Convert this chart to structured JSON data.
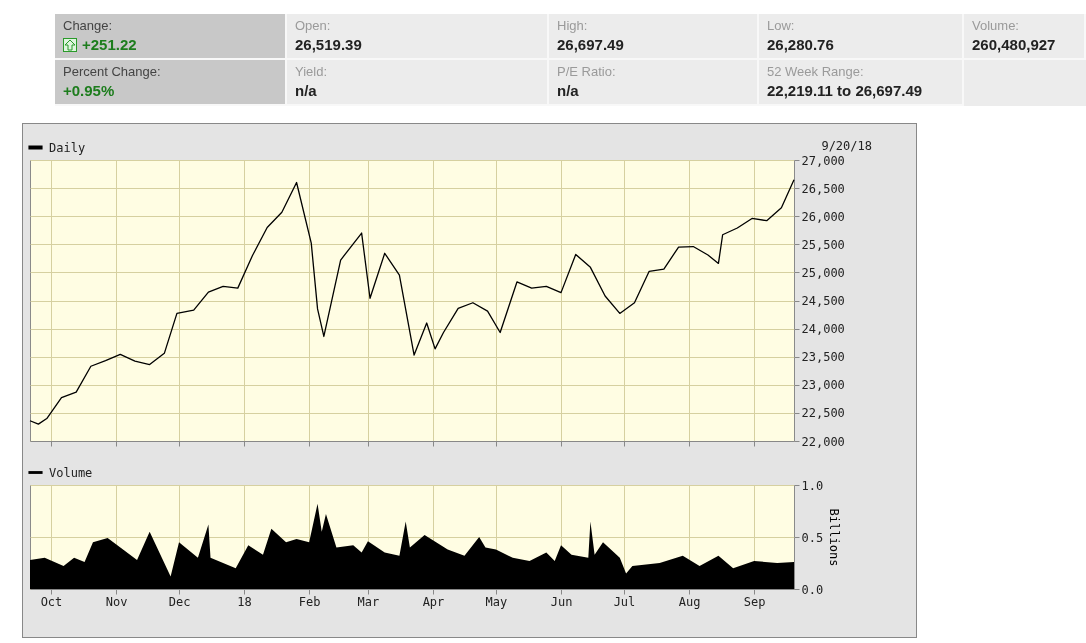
{
  "chart_data": [
    {
      "type": "other",
      "annotations": [
        "Change:",
        "+251.22",
        "Open:",
        "26,519.39",
        "High:",
        "26,697.49",
        "Low:",
        "26,280.76",
        "Volume:",
        "260,480,927",
        "Percent Change:",
        "+0.95%",
        "Yield:",
        "n/a",
        "P/E Ratio:",
        "n/a",
        "52 Week Range:",
        "22,219.11 to 26,697.49"
      ]
    },
    {
      "type": "line",
      "annotations": [
        "9/20/18"
      ],
      "xticks": [
        {
          "value": "2017-10-01",
          "label": null
        },
        {
          "value": "2017-11-01",
          "label": null
        },
        {
          "value": "2017-12-01",
          "label": null
        },
        {
          "value": "2018-01-01",
          "label": null
        },
        {
          "value": "2018-02-01",
          "label": null
        },
        {
          "value": "2018-03-01",
          "label": null
        },
        {
          "value": "2018-04-01",
          "label": null
        },
        {
          "value": "2018-05-01",
          "label": null
        },
        {
          "value": "2018-06-01",
          "label": null
        },
        {
          "value": "2018-07-01",
          "label": null
        },
        {
          "value": "2018-08-01",
          "label": null
        },
        {
          "value": "2018-09-01",
          "label": null
        }
      ],
      "x": [
        "2017-09-21",
        "2017-09-25",
        "2017-09-29",
        "2017-10-06",
        "2017-10-13",
        "2017-10-20",
        "2017-10-27",
        "2017-11-03",
        "2017-11-10",
        "2017-11-17",
        "2017-11-24",
        "2017-11-30",
        "2017-12-08",
        "2017-12-15",
        "2017-12-22",
        "2017-12-29",
        "2018-01-05",
        "2018-01-12",
        "2018-01-19",
        "2018-01-26",
        "2018-02-02",
        "2018-02-05",
        "2018-02-08",
        "2018-02-16",
        "2018-02-26",
        "2018-03-02",
        "2018-03-09",
        "2018-03-16",
        "2018-03-23",
        "2018-03-29",
        "2018-04-02",
        "2018-04-06",
        "2018-04-13",
        "2018-04-20",
        "2018-04-27",
        "2018-05-03",
        "2018-05-11",
        "2018-05-18",
        "2018-05-25",
        "2018-06-01",
        "2018-06-08",
        "2018-06-15",
        "2018-06-22",
        "2018-06-29",
        "2018-07-06",
        "2018-07-13",
        "2018-07-20",
        "2018-07-27",
        "2018-08-03",
        "2018-08-10",
        "2018-08-15",
        "2018-08-17",
        "2018-08-24",
        "2018-08-31",
        "2018-09-07",
        "2018-09-14",
        "2018-09-20"
      ],
      "series": [
        {
          "name": "Daily",
          "color": "#000000",
          "values": [
            22360,
            22300,
            22400,
            22770,
            22870,
            23330,
            23430,
            23540,
            23420,
            23360,
            23560,
            24270,
            24330,
            24650,
            24750,
            24720,
            25300,
            25800,
            26070,
            26600,
            25520,
            24350,
            23860,
            25220,
            25700,
            24540,
            25340,
            24950,
            23530,
            24100,
            23640,
            23930,
            24360,
            24460,
            24310,
            23930,
            24830,
            24720,
            24750,
            24640,
            25320,
            25090,
            24580,
            24270,
            24460,
            25020,
            25060,
            25450,
            25460,
            25310,
            25160,
            25670,
            25790,
            25960,
            25920,
            26150,
            26650
          ]
        }
      ],
      "xlim": [
        "2017-09-21",
        "2018-09-20"
      ],
      "ylim": [
        22000,
        27000
      ],
      "yticks": [
        {
          "value": 22000,
          "label": "22,000"
        },
        {
          "value": 22500,
          "label": "22,500"
        },
        {
          "value": 23000,
          "label": "23,000"
        },
        {
          "value": 23500,
          "label": "23,500"
        },
        {
          "value": 24000,
          "label": "24,000"
        },
        {
          "value": 24500,
          "label": "24,500"
        },
        {
          "value": 25000,
          "label": "25,000"
        },
        {
          "value": 25500,
          "label": "25,500"
        },
        {
          "value": 26000,
          "label": "26,000"
        },
        {
          "value": 26500,
          "label": "26,500"
        },
        {
          "value": 27000,
          "label": "27,000"
        }
      ],
      "tick_labels": "y",
      "grid": true,
      "legend": "top left",
      "line_style": "solid"
    },
    {
      "type": "area",
      "ylabel": "Billions",
      "x": [
        "2017-09-21",
        "2017-09-28",
        "2017-10-07",
        "2017-10-12",
        "2017-10-17",
        "2017-10-21",
        "2017-10-28",
        "2017-11-11",
        "2017-11-17",
        "2017-11-27",
        "2017-12-01",
        "2017-12-10",
        "2017-12-15",
        "2017-12-16",
        "2017-12-28",
        "2018-01-03",
        "2018-01-10",
        "2018-01-14",
        "2018-01-21",
        "2018-01-26",
        "2018-02-01",
        "2018-02-05",
        "2018-02-07",
        "2018-02-09",
        "2018-02-14",
        "2018-02-22",
        "2018-02-26",
        "2018-03-01",
        "2018-03-09",
        "2018-03-16",
        "2018-03-19",
        "2018-03-21",
        "2018-03-28",
        "2018-04-08",
        "2018-04-16",
        "2018-04-23",
        "2018-04-26",
        "2018-05-01",
        "2018-05-09",
        "2018-05-17",
        "2018-05-25",
        "2018-05-29",
        "2018-06-01",
        "2018-06-06",
        "2018-06-14",
        "2018-06-15",
        "2018-06-17",
        "2018-06-21",
        "2018-06-29",
        "2018-07-02",
        "2018-07-05",
        "2018-07-18",
        "2018-07-29",
        "2018-08-06",
        "2018-08-15",
        "2018-08-22",
        "2018-09-01",
        "2018-09-12",
        "2018-09-20"
      ],
      "series": [
        {
          "name": "Volume",
          "color": "#000000",
          "values": [
            0.28,
            0.3,
            0.22,
            0.3,
            0.26,
            0.45,
            0.49,
            0.28,
            0.55,
            0.12,
            0.45,
            0.3,
            0.62,
            0.3,
            0.2,
            0.42,
            0.33,
            0.58,
            0.45,
            0.48,
            0.45,
            0.82,
            0.55,
            0.72,
            0.4,
            0.42,
            0.35,
            0.46,
            0.35,
            0.32,
            0.65,
            0.4,
            0.52,
            0.38,
            0.32,
            0.5,
            0.4,
            0.38,
            0.3,
            0.27,
            0.35,
            0.27,
            0.42,
            0.33,
            0.3,
            0.65,
            0.33,
            0.45,
            0.3,
            0.15,
            0.22,
            0.25,
            0.32,
            0.22,
            0.32,
            0.2,
            0.27,
            0.25,
            0.26
          ]
        }
      ],
      "xlim": [
        "2017-09-21",
        "2018-09-20"
      ],
      "xticks": [
        {
          "value": "2017-10-01",
          "label": "Oct"
        },
        {
          "value": "2017-11-01",
          "label": "Nov"
        },
        {
          "value": "2017-12-01",
          "label": "Dec"
        },
        {
          "value": "2018-01-01",
          "label": "18"
        },
        {
          "value": "2018-02-01",
          "label": "Feb"
        },
        {
          "value": "2018-03-01",
          "label": "Mar"
        },
        {
          "value": "2018-04-01",
          "label": "Apr"
        },
        {
          "value": "2018-05-01",
          "label": "May"
        },
        {
          "value": "2018-06-01",
          "label": "Jun"
        },
        {
          "value": "2018-07-01",
          "label": "Jul"
        },
        {
          "value": "2018-08-01",
          "label": "Aug"
        },
        {
          "value": "2018-09-01",
          "label": "Sep"
        }
      ],
      "ylim": [
        0,
        1
      ],
      "yticks": [
        {
          "value": 0,
          "label": "0.0"
        },
        {
          "value": 0.5,
          "label": "0.5"
        },
        {
          "value": 1,
          "label": "1.0"
        }
      ],
      "grid": true,
      "legend": "top left"
    }
  ]
}
